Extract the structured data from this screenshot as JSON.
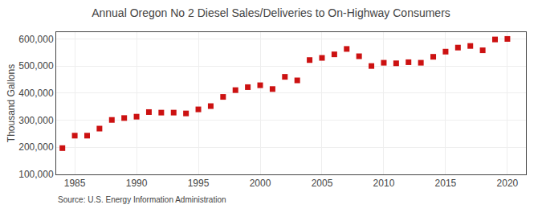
{
  "chart_data": {
    "type": "scatter",
    "title": "Annual Oregon No 2 Diesel Sales/Deliveries to On-Highway Consumers",
    "ylabel": "Thousand Gallons",
    "annotations": [
      "Source: U.S. Energy Information Administration"
    ],
    "x": [
      1984,
      1985,
      1986,
      1987,
      1988,
      1989,
      1990,
      1991,
      1992,
      1993,
      1994,
      1995,
      1996,
      1997,
      1998,
      1999,
      2000,
      2001,
      2002,
      2003,
      2004,
      2005,
      2006,
      2007,
      2008,
      2009,
      2010,
      2011,
      2012,
      2013,
      2014,
      2015,
      2016,
      2017,
      2018,
      2019,
      2020
    ],
    "values": [
      197000,
      243000,
      243000,
      269000,
      301000,
      308000,
      313000,
      330000,
      328000,
      328000,
      325000,
      340000,
      352000,
      386000,
      411000,
      422000,
      429000,
      415000,
      460000,
      447000,
      522000,
      530000,
      543000,
      563000,
      536000,
      500000,
      512000,
      510000,
      514000,
      512000,
      534000,
      553000,
      568000,
      574000,
      558000,
      598000,
      600000
    ],
    "color": "#cc1111",
    "marker": "square",
    "xlim": [
      1983.5,
      2021.5
    ],
    "ylim": [
      100000,
      625000
    ],
    "xticks": [
      1985,
      1990,
      1995,
      2000,
      2005,
      2010,
      2015,
      2020
    ],
    "yticks": [
      {
        "value": 100000,
        "label": "100,000"
      },
      {
        "value": 200000,
        "label": "200,000"
      },
      {
        "value": 300000,
        "label": "300,000"
      },
      {
        "value": 400000,
        "label": "400,000"
      },
      {
        "value": 500000,
        "label": "500,000"
      },
      {
        "value": 600000,
        "label": "600,000"
      }
    ],
    "grid": true
  }
}
